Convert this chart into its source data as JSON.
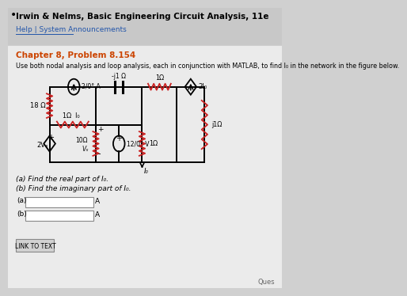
{
  "title_line1": "Irwin & Nelms, Basic Engineering Circuit Analysis, 11e",
  "title_line2": "Help | System Announcements",
  "chapter_problem": "Chapter 8, Problem 8.154",
  "problem_text": "Use both nodal analysis and loop analysis, each in conjunction with MATLAB, to find I₀ in the network in the figure below.",
  "part_a_label": "(a) Find the real part of I₀.",
  "part_b_label": "(b) Find the imaginary part of I₀.",
  "unit": "A",
  "link_text": "LINK TO TEXT",
  "R1_label": "18 Ω",
  "CS_label": "2/0° A",
  "Cap_label": "-j1 Ω",
  "CCCS_label": "2I₀",
  "R_lo_label": "1Ω  I₀",
  "R_mid_label": "1Ω",
  "VS_label": "12/0° V",
  "Vx_resistor": "10Ω",
  "Vx_label": "Vₓ",
  "R_bottom_label": "1Ω",
  "R_right_label": "j1Ω",
  "VCVS_label": "2Vₓ",
  "Ix_label": "I₀"
}
